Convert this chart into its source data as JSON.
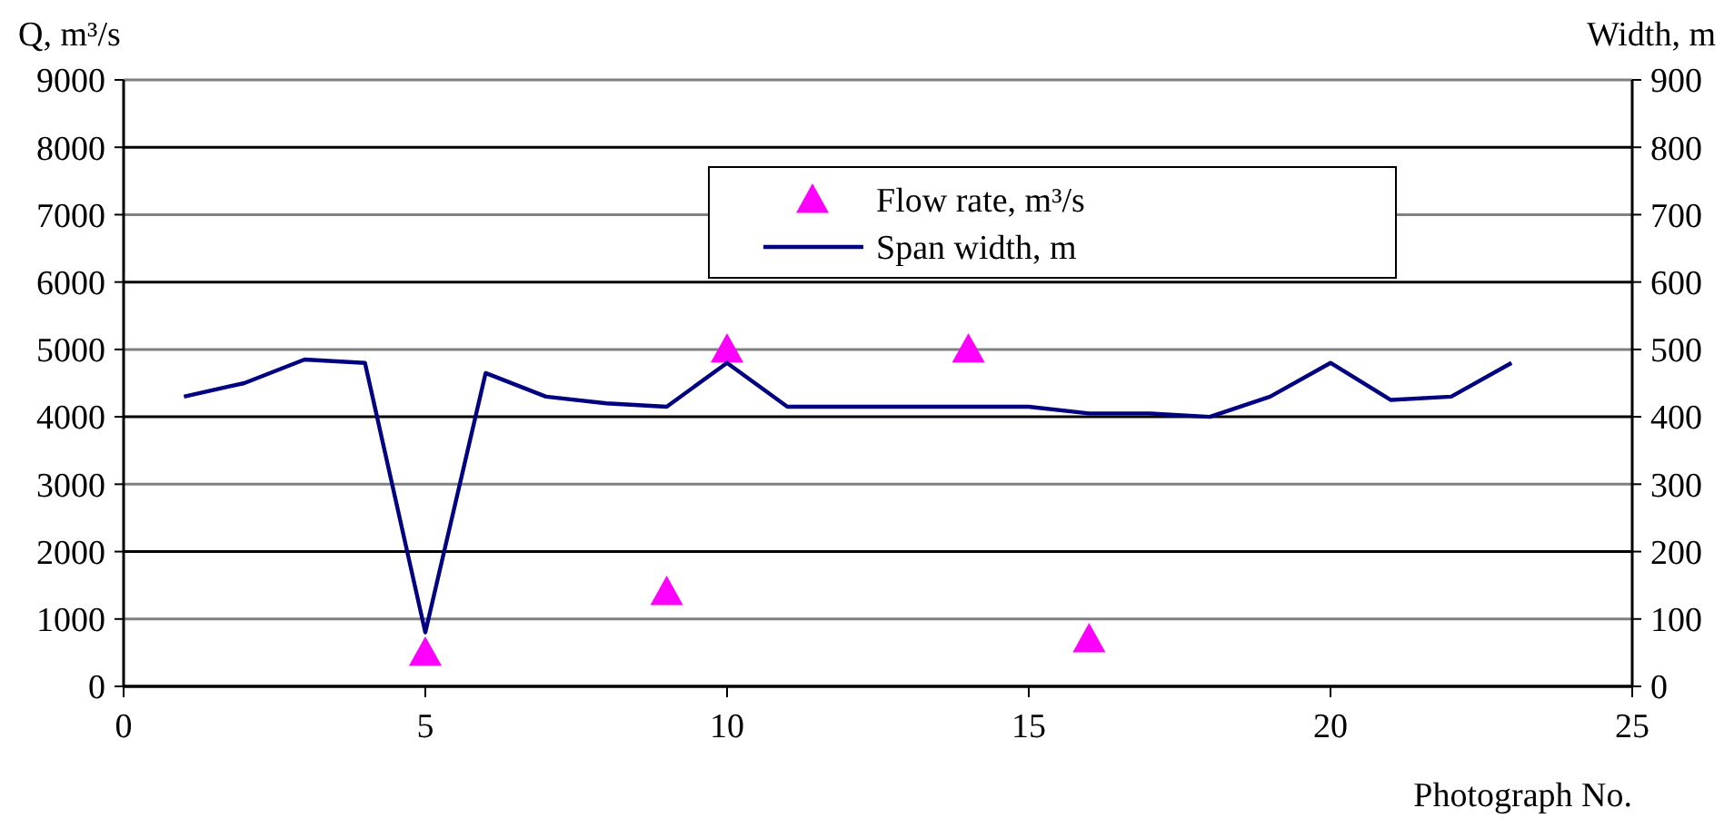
{
  "chart_data": {
    "type": "line",
    "xlabel": "Photograph No.",
    "ylabel": "Q, m³/s",
    "y2label": "Width, m",
    "xlim": [
      0,
      25
    ],
    "xticks": [
      0,
      5,
      10,
      15,
      20,
      25
    ],
    "ylim": [
      0,
      9000
    ],
    "yticks": [
      0,
      1000,
      2000,
      3000,
      4000,
      5000,
      6000,
      7000,
      8000,
      9000
    ],
    "y2lim": [
      0,
      900
    ],
    "y2ticks": [
      0,
      100,
      200,
      300,
      400,
      500,
      600,
      700,
      800,
      900
    ],
    "grid": "y",
    "legend": "top",
    "series": [
      {
        "name": "Flow rate, m³/s",
        "type": "scatter",
        "marker": "triangle",
        "color": "#ff00ff",
        "x": [
          5,
          9,
          10,
          14,
          16
        ],
        "values": [
          500,
          1400,
          5000,
          5000,
          700
        ]
      },
      {
        "name": "Span width, m",
        "type": "line",
        "axis": "y2",
        "marker": "none",
        "line_style": "solid",
        "color": "#000080",
        "x": [
          1,
          2,
          3,
          4,
          5,
          6,
          7,
          8,
          9,
          10,
          11,
          12,
          13,
          14,
          15,
          16,
          17,
          18,
          19,
          20,
          21,
          22,
          23
        ],
        "values": [
          430,
          450,
          485,
          480,
          80,
          465,
          430,
          420,
          415,
          480,
          415,
          415,
          415,
          415,
          415,
          405,
          405,
          400,
          430,
          480,
          425,
          430,
          480
        ]
      }
    ]
  }
}
